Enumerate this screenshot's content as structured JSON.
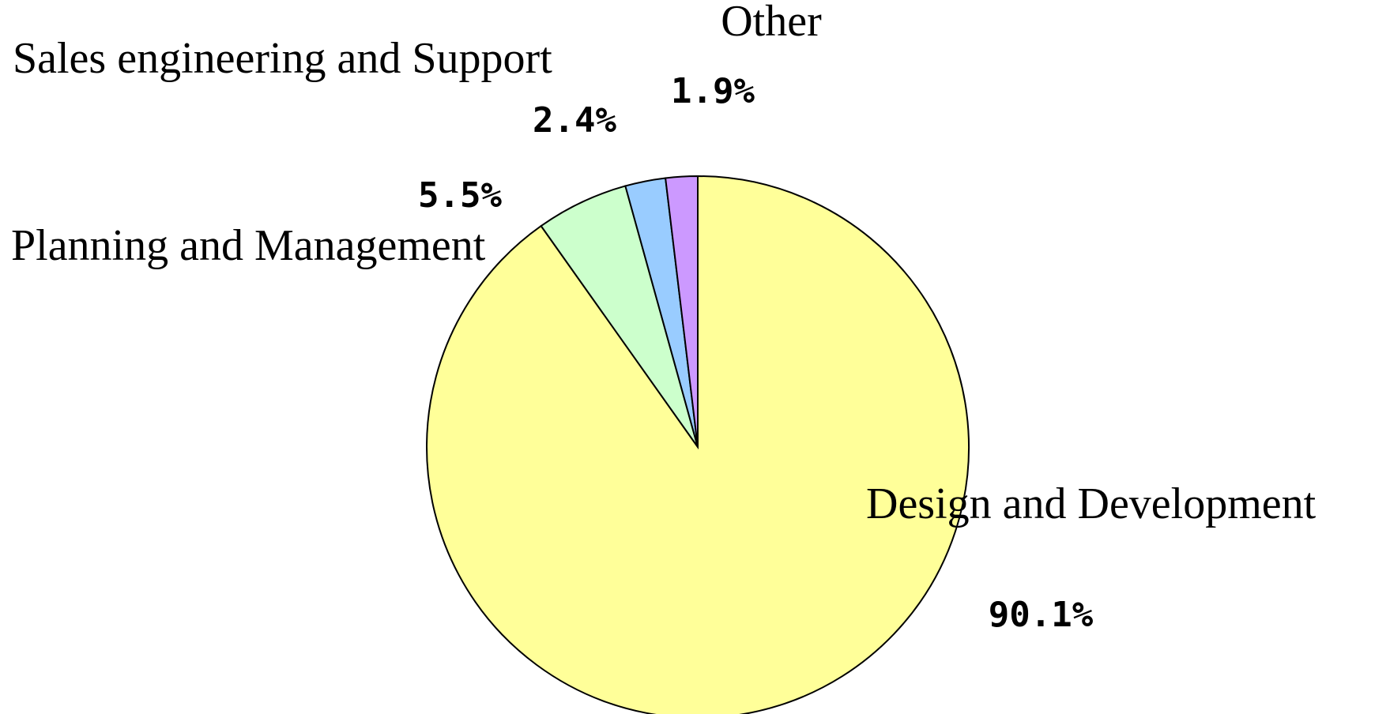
{
  "chart_data": {
    "type": "pie",
    "categories": [
      "Design and Development",
      "Planning and Management",
      "Sales engineering and Support",
      "Other"
    ],
    "values": [
      90.1,
      5.5,
      2.4,
      1.9
    ],
    "value_labels": [
      "90.1%",
      "5.5%",
      "2.4%",
      "1.9%"
    ],
    "colors": [
      "#ffff99",
      "#ccffcc",
      "#99ccff",
      "#cc99ff"
    ]
  }
}
